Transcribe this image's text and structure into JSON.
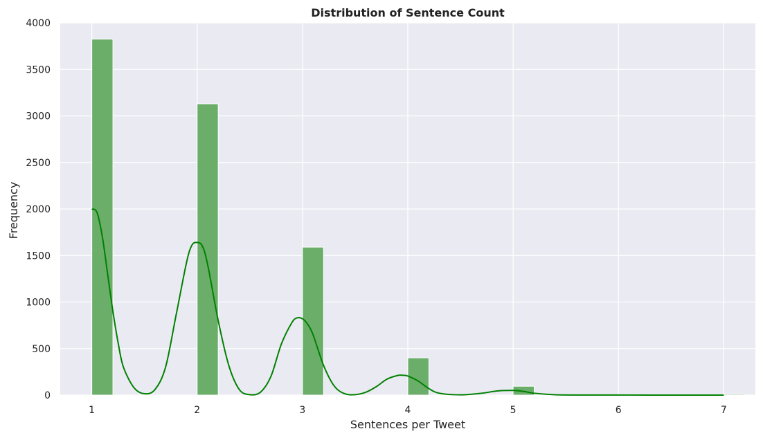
{
  "chart_data": {
    "type": "bar",
    "title": "Distribution of Sentence Count",
    "xlabel": "Sentences per Tweet",
    "ylabel": "Frequency",
    "xlim": [
      0.7,
      7.3
    ],
    "ylim": [
      0,
      4000
    ],
    "x_ticks": [
      1,
      2,
      3,
      4,
      5,
      6,
      7
    ],
    "y_ticks": [
      0,
      500,
      1000,
      1500,
      2000,
      2500,
      3000,
      3500,
      4000
    ],
    "bin_width": 0.2,
    "bins": [
      {
        "x": 1,
        "count": 3825
      },
      {
        "x": 2,
        "count": 3130
      },
      {
        "x": 3,
        "count": 1590
      },
      {
        "x": 4,
        "count": 400
      },
      {
        "x": 5,
        "count": 95
      },
      {
        "x": 6,
        "count": 8
      },
      {
        "x": 7,
        "count": 10
      }
    ],
    "kde": [
      [
        1.0,
        2000
      ],
      [
        1.05,
        1960
      ],
      [
        1.1,
        1700
      ],
      [
        1.15,
        1300
      ],
      [
        1.2,
        900
      ],
      [
        1.25,
        560
      ],
      [
        1.3,
        300
      ],
      [
        1.4,
        80
      ],
      [
        1.5,
        15
      ],
      [
        1.6,
        60
      ],
      [
        1.7,
        300
      ],
      [
        1.8,
        860
      ],
      [
        1.9,
        1430
      ],
      [
        1.95,
        1610
      ],
      [
        2.0,
        1640
      ],
      [
        2.05,
        1600
      ],
      [
        2.1,
        1400
      ],
      [
        2.2,
        800
      ],
      [
        2.3,
        320
      ],
      [
        2.4,
        60
      ],
      [
        2.5,
        5
      ],
      [
        2.6,
        30
      ],
      [
        2.7,
        200
      ],
      [
        2.8,
        550
      ],
      [
        2.9,
        780
      ],
      [
        2.95,
        830
      ],
      [
        3.0,
        820
      ],
      [
        3.05,
        760
      ],
      [
        3.1,
        650
      ],
      [
        3.2,
        320
      ],
      [
        3.3,
        100
      ],
      [
        3.4,
        15
      ],
      [
        3.5,
        5
      ],
      [
        3.6,
        30
      ],
      [
        3.7,
        90
      ],
      [
        3.8,
        170
      ],
      [
        3.9,
        210
      ],
      [
        3.95,
        213
      ],
      [
        4.0,
        205
      ],
      [
        4.1,
        150
      ],
      [
        4.2,
        70
      ],
      [
        4.3,
        20
      ],
      [
        4.5,
        3
      ],
      [
        4.7,
        20
      ],
      [
        4.85,
        45
      ],
      [
        5.0,
        50
      ],
      [
        5.1,
        40
      ],
      [
        5.2,
        20
      ],
      [
        5.4,
        4
      ],
      [
        5.7,
        1
      ],
      [
        6.0,
        1
      ],
      [
        6.3,
        0
      ],
      [
        6.7,
        0
      ],
      [
        7.0,
        0
      ]
    ],
    "bar_color": "#6aae6a",
    "bar_edge_color": "#ffffff",
    "kde_color": "#008000",
    "background_color": "#eaeaf2",
    "grid": true,
    "legend": "none"
  }
}
